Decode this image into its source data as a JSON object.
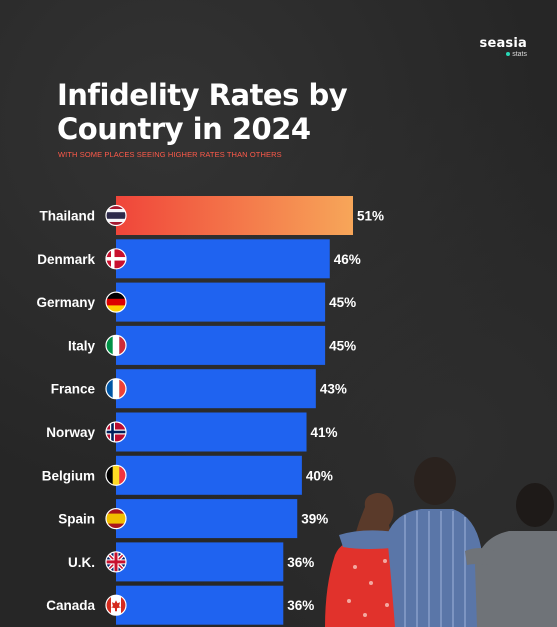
{
  "brand": {
    "name": "seasia",
    "sub": "stats"
  },
  "title_line1": "Infidelity Rates by",
  "title_line2": "Country in 2024",
  "subtitle": "WITH SOME PLACES SEEING HIGHER RATES THAN OTHERS",
  "colors": {
    "highlight_start": "#f0453a",
    "highlight_end": "#f7a659",
    "bar": "#1f63f0",
    "subtitle": "#ff5a4a",
    "background": "#262626"
  },
  "chart_data": {
    "type": "bar",
    "orientation": "horizontal",
    "title": "Infidelity Rates by Country in 2024",
    "subtitle": "WITH SOME PLACES SEEING HIGHER RATES THAN OTHERS",
    "categories": [
      "Thailand",
      "Denmark",
      "Germany",
      "Italy",
      "France",
      "Norway",
      "Belgium",
      "Spain",
      "U.K.",
      "Canada"
    ],
    "values": [
      51,
      46,
      45,
      45,
      43,
      41,
      40,
      39,
      36,
      36
    ],
    "value_labels": [
      "51%",
      "46%",
      "45%",
      "45%",
      "43%",
      "41%",
      "40%",
      "39%",
      "36%",
      "36%"
    ],
    "flags": [
      "thailand-flag-icon",
      "denmark-flag-icon",
      "germany-flag-icon",
      "italy-flag-icon",
      "france-flag-icon",
      "norway-flag-icon",
      "belgium-flag-icon",
      "spain-flag-icon",
      "uk-flag-icon",
      "canada-flag-icon"
    ],
    "highlighted": "Thailand",
    "xlabel": "",
    "ylabel": "",
    "xlim": [
      0,
      51
    ],
    "grid": false,
    "legend": "none"
  }
}
